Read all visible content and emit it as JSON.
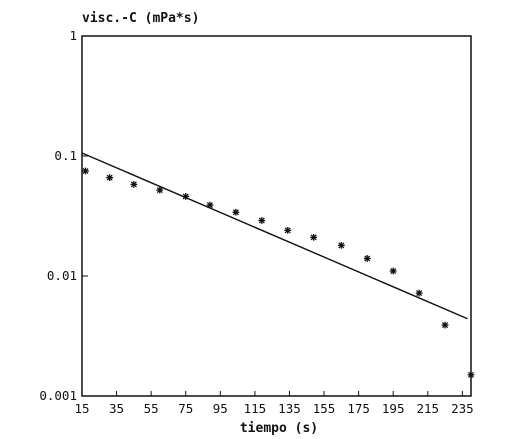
{
  "chart_data": {
    "type": "scatter",
    "title": "",
    "ylabel": "visc.-C (mPa*s)",
    "xlabel": "tiempo (s)",
    "yscale": "log",
    "xlim": [
      15,
      240
    ],
    "ylim": [
      0.001,
      1
    ],
    "grid": false,
    "x_ticks": [
      "15",
      "35",
      "55",
      "75",
      "95",
      "115",
      "135",
      "155",
      "175",
      "195",
      "215",
      "235"
    ],
    "y_ticks": [
      "1",
      "0.1",
      "0.01",
      "0.001"
    ],
    "series": [
      {
        "type": "scatter",
        "marker": "asterisk",
        "x": [
          17,
          31,
          45,
          60,
          75,
          89,
          104,
          119,
          134,
          149,
          165,
          180,
          195,
          210,
          225,
          240
        ],
        "y": [
          0.075,
          0.066,
          0.058,
          0.052,
          0.046,
          0.039,
          0.034,
          0.029,
          0.024,
          0.021,
          0.018,
          0.014,
          0.011,
          0.0072,
          0.0039,
          0.0015
        ]
      },
      {
        "type": "line",
        "x": [
          15,
          238
        ],
        "y": [
          0.106,
          0.0044
        ]
      }
    ]
  }
}
